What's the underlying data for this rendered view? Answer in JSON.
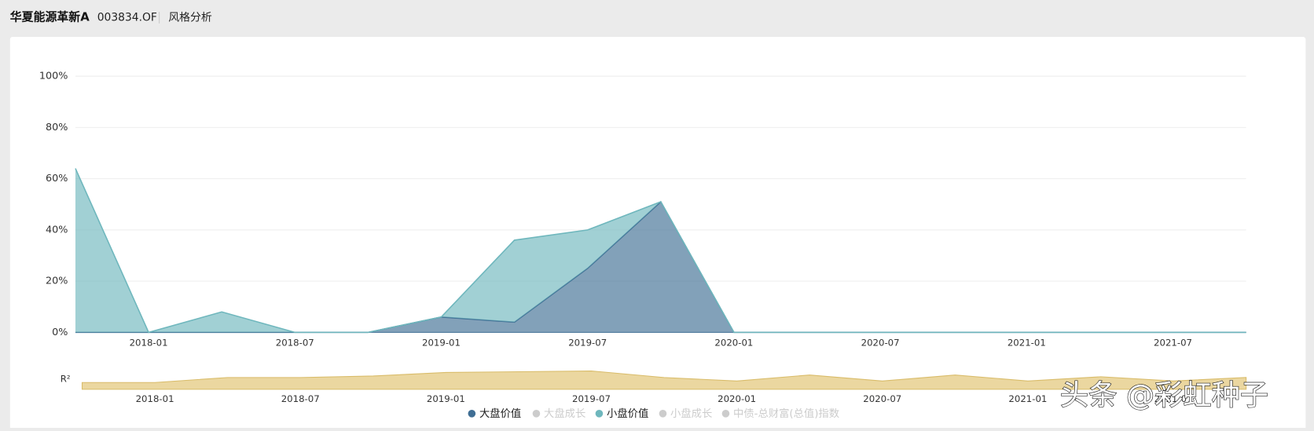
{
  "header": {
    "fund_name": "华夏能源革新A",
    "fund_code": "003834.OF",
    "tab": "风格分析"
  },
  "watermark": "头条 @彩虹种子",
  "chart_data": [
    {
      "type": "stacked_area",
      "categories": [
        "2017-10",
        "2018-01",
        "2018-04",
        "2018-07",
        "2018-10",
        "2019-01",
        "2019-04",
        "2019-07",
        "2019-10",
        "2020-01",
        "2020-04",
        "2020-07",
        "2020-10",
        "2021-01",
        "2021-04",
        "2021-07",
        "2021-10"
      ],
      "xtick_labels": [
        "2018-01",
        "2018-07",
        "2019-01",
        "2019-07",
        "2020-01",
        "2020-07",
        "2021-01",
        "2021-07"
      ],
      "series": [
        {
          "name": "大盘价值",
          "color": "#3f6e94",
          "visible": true,
          "values": [
            0,
            0,
            0,
            0,
            0,
            6,
            4,
            25,
            51,
            0,
            0,
            0,
            0,
            0,
            0,
            0,
            0
          ]
        },
        {
          "name": "大盘成长",
          "color": "#cccccc",
          "visible": false
        },
        {
          "name": "小盘价值",
          "color": "#6fb7bd",
          "visible": true,
          "values": [
            64,
            0,
            8,
            0,
            0,
            0,
            32,
            15,
            0,
            0,
            0,
            0,
            0,
            0,
            0,
            0,
            0
          ]
        },
        {
          "name": "小盘成长",
          "color": "#cccccc",
          "visible": false
        },
        {
          "name": "中债-总财富(总值)指数",
          "color": "#cccccc",
          "visible": false
        }
      ],
      "ylim": [
        0,
        100
      ],
      "yticks": [
        {
          "value": 0,
          "label": "0%"
        },
        {
          "value": 20,
          "label": "20%"
        },
        {
          "value": 40,
          "label": "40%"
        },
        {
          "value": 60,
          "label": "60%"
        },
        {
          "value": 80,
          "label": "80%"
        },
        {
          "value": 100,
          "label": "100%"
        }
      ],
      "grid": true
    },
    {
      "type": "area",
      "ylabel": "R²",
      "color": "#e8d08f",
      "categories": [
        "2017-10",
        "2018-01",
        "2018-04",
        "2018-07",
        "2018-10",
        "2019-01",
        "2019-04",
        "2019-07",
        "2019-10",
        "2020-01",
        "2020-04",
        "2020-07",
        "2020-10",
        "2021-01",
        "2021-04",
        "2021-07",
        "2021-10"
      ],
      "xtick_labels": [
        "2018-01",
        "2018-07",
        "2019-01",
        "2019-07",
        "2020-01",
        "2020-07",
        "2021-01",
        "2021-07"
      ],
      "values": [
        0.27,
        0.27,
        0.47,
        0.47,
        0.53,
        0.67,
        0.7,
        0.73,
        0.47,
        0.33,
        0.57,
        0.33,
        0.57,
        0.33,
        0.5,
        0.33,
        0.47
      ],
      "ylim": [
        0,
        1
      ]
    }
  ]
}
